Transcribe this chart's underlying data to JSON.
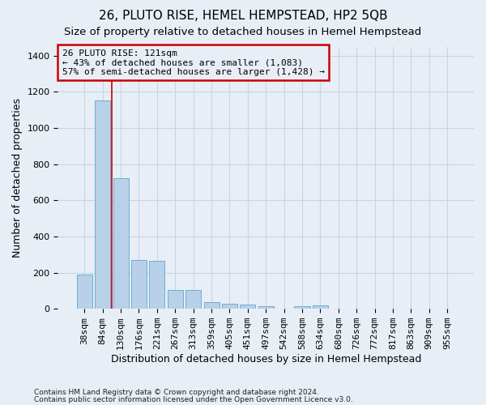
{
  "title": "26, PLUTO RISE, HEMEL HEMPSTEAD, HP2 5QB",
  "subtitle": "Size of property relative to detached houses in Hemel Hempstead",
  "xlabel": "Distribution of detached houses by size in Hemel Hempstead",
  "ylabel": "Number of detached properties",
  "footnote1": "Contains HM Land Registry data © Crown copyright and database right 2024.",
  "footnote2": "Contains public sector information licensed under the Open Government Licence v3.0.",
  "bin_labels": [
    "38sqm",
    "84sqm",
    "130sqm",
    "176sqm",
    "221sqm",
    "267sqm",
    "313sqm",
    "359sqm",
    "405sqm",
    "451sqm",
    "497sqm",
    "542sqm",
    "588sqm",
    "634sqm",
    "680sqm",
    "726sqm",
    "772sqm",
    "817sqm",
    "863sqm",
    "909sqm",
    "955sqm"
  ],
  "bar_values": [
    190,
    1150,
    720,
    270,
    265,
    105,
    105,
    35,
    30,
    25,
    15,
    0,
    15,
    18,
    0,
    0,
    0,
    0,
    0,
    0,
    0
  ],
  "bar_color": "#b8d0e8",
  "bar_edge_color": "#6baed6",
  "grid_color": "#c8d4e4",
  "background_color": "#e8eef6",
  "vline_x": 1.5,
  "vline_color": "#cc0000",
  "annotation_text": "26 PLUTO RISE: 121sqm\n← 43% of detached houses are smaller (1,083)\n57% of semi-detached houses are larger (1,428) →",
  "annotation_box_color": "#cc0000",
  "ylim": [
    0,
    1450
  ],
  "yticks": [
    0,
    200,
    400,
    600,
    800,
    1000,
    1200,
    1400
  ],
  "title_fontsize": 11,
  "subtitle_fontsize": 9.5,
  "xlabel_fontsize": 9,
  "ylabel_fontsize": 9,
  "tick_fontsize": 8,
  "annot_fontsize": 8
}
